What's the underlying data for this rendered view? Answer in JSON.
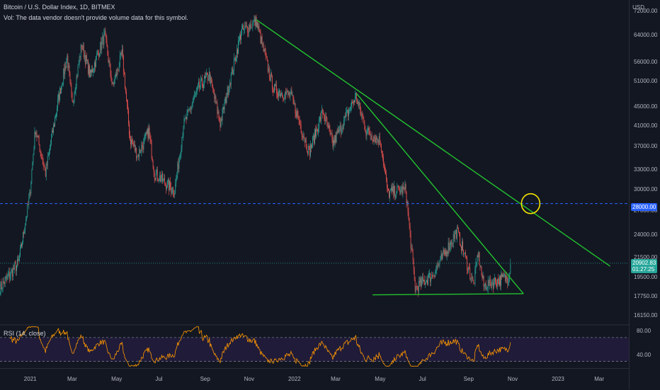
{
  "header": {
    "title": "Bitcoin / U.S. Dollar Index, 1D, BITMEX",
    "volume_note": "Vol: The data vendor doesn't provide volume data for this symbol.",
    "currency": "USD"
  },
  "rsi": {
    "label": "RSI (14, close)",
    "upper_band": 70,
    "lower_band": 30,
    "ticks": [
      "80.00",
      "40.00"
    ],
    "color": "#ff9800",
    "band_fill": "#2a1e4a"
  },
  "price_ticks": [
    "72000.00",
    "64000.00",
    "56000.00",
    "51000.00",
    "45000.00",
    "41000.00",
    "37000.00",
    "33000.00",
    "30000.00",
    "27000.00",
    "24000.00",
    "21500.00",
    "19500.00",
    "17750.00",
    "16150.00"
  ],
  "price_badges": {
    "level": "28000.00",
    "last_price": "20902.83",
    "countdown": "01:27:25"
  },
  "time_ticks": [
    "2021",
    "Mar",
    "May",
    "Jul",
    "Sep",
    "Nov",
    "2022",
    "Mar",
    "May",
    "Jul",
    "Sep",
    "Nov",
    "2023",
    "Mar"
  ],
  "colors": {
    "background": "#131722",
    "up": "#26a69a",
    "down": "#ef5350",
    "trendline": "#22c32e",
    "highlight_circle": "#f5e400",
    "level_line": "#2962ff"
  },
  "chart_data": {
    "type": "candlestick",
    "symbol": "Bitcoin / U.S. Dollar Index",
    "interval": "1D",
    "exchange": "BITMEX",
    "scale": "log",
    "ylim": [
      15500,
      76000
    ],
    "x_start": "2020-11-20",
    "x_end": "2023-04-10",
    "price_anchors": [
      {
        "date": "2020-11-20",
        "close": 18500
      },
      {
        "date": "2020-12-16",
        "close": 21000
      },
      {
        "date": "2020-12-31",
        "close": 29000
      },
      {
        "date": "2021-01-08",
        "close": 40500
      },
      {
        "date": "2021-01-22",
        "close": 32500
      },
      {
        "date": "2021-02-08",
        "close": 46000
      },
      {
        "date": "2021-02-21",
        "close": 57500
      },
      {
        "date": "2021-02-28",
        "close": 45500
      },
      {
        "date": "2021-03-13",
        "close": 61000
      },
      {
        "date": "2021-03-25",
        "close": 52500
      },
      {
        "date": "2021-04-14",
        "close": 64000
      },
      {
        "date": "2021-04-25",
        "close": 49500
      },
      {
        "date": "2021-05-08",
        "close": 58500
      },
      {
        "date": "2021-05-19",
        "close": 38500
      },
      {
        "date": "2021-05-30",
        "close": 35500
      },
      {
        "date": "2021-06-14",
        "close": 40000
      },
      {
        "date": "2021-06-22",
        "close": 32500
      },
      {
        "date": "2021-07-20",
        "close": 29800
      },
      {
        "date": "2021-08-01",
        "close": 41000
      },
      {
        "date": "2021-08-22",
        "close": 49500
      },
      {
        "date": "2021-09-06",
        "close": 52500
      },
      {
        "date": "2021-09-21",
        "close": 41500
      },
      {
        "date": "2021-10-20",
        "close": 65000
      },
      {
        "date": "2021-11-10",
        "close": 68500
      },
      {
        "date": "2021-11-26",
        "close": 54500
      },
      {
        "date": "2021-12-04",
        "close": 49000
      },
      {
        "date": "2021-12-28",
        "close": 47500
      },
      {
        "date": "2022-01-22",
        "close": 36000
      },
      {
        "date": "2022-02-10",
        "close": 44000
      },
      {
        "date": "2022-02-24",
        "close": 37500
      },
      {
        "date": "2022-03-28",
        "close": 47500
      },
      {
        "date": "2022-04-11",
        "close": 40000
      },
      {
        "date": "2022-05-01",
        "close": 38000
      },
      {
        "date": "2022-05-11",
        "close": 29500
      },
      {
        "date": "2022-06-05",
        "close": 30000
      },
      {
        "date": "2022-06-18",
        "close": 18500
      },
      {
        "date": "2022-07-13",
        "close": 19800
      },
      {
        "date": "2022-08-15",
        "close": 24500
      },
      {
        "date": "2022-09-07",
        "close": 18800
      },
      {
        "date": "2022-09-13",
        "close": 22000
      },
      {
        "date": "2022-09-21",
        "close": 18700
      },
      {
        "date": "2022-10-10",
        "close": 19200
      },
      {
        "date": "2022-10-25",
        "close": 19500
      },
      {
        "date": "2022-10-28",
        "close": 20900
      }
    ],
    "last_close": 20902.83,
    "horizontal_level": 28000,
    "last_price_line": 20902.83,
    "drawings": [
      {
        "type": "trendline",
        "from": {
          "date": "2021-11-10",
          "price": 69000
        },
        "to": {
          "date": "2023-03-15",
          "price": 20600
        }
      },
      {
        "type": "trendline",
        "from": {
          "date": "2022-03-29",
          "price": 48000
        },
        "to": {
          "date": "2022-11-15",
          "price": 18000
        }
      },
      {
        "type": "trendline",
        "from": {
          "date": "2022-04-20",
          "price": 17900
        },
        "to": {
          "date": "2022-11-15",
          "price": 18000
        }
      },
      {
        "type": "ellipse",
        "center": {
          "date": "2022-11-25",
          "price": 28000
        }
      }
    ]
  }
}
